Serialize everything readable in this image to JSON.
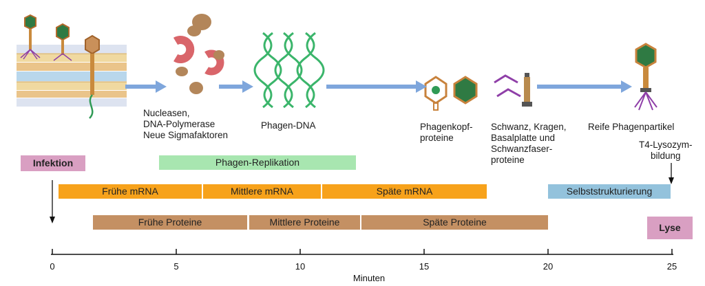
{
  "stage_labels": {
    "enzymes": "Nucleasen,\nDNA-Polymerase\nNeue Sigmafaktoren",
    "phage_dna": "Phagen-DNA",
    "head_proteins": "Phagenkopf-\nproteine",
    "tail_proteins": "Schwanz, Kragen,\nBasalplatte und\nSchwanzfaser-\nproteine",
    "mature": "Reife Phagenpartikel",
    "lysozyme": "T4-Lysozym-\nbildung"
  },
  "events": {
    "infection": "Infektion",
    "lysis": "Lyse"
  },
  "bars": {
    "replication": "Phagen-Replikation",
    "early_mrna": "Frühe mRNA",
    "middle_mrna": "Mittlere mRNA",
    "late_mrna": "Späte mRNA",
    "self_assembly": "Selbststrukturierung",
    "early_proteins": "Frühe Proteine",
    "middle_proteins": "Mittlere Proteine",
    "late_proteins": "Späte Proteine"
  },
  "axis": {
    "label": "Minuten",
    "ticks": [
      "0",
      "5",
      "10",
      "15",
      "20",
      "25"
    ]
  },
  "colors": {
    "infection": "#d99fc2",
    "lysis": "#d99fc2",
    "replication": "#a8e6b0",
    "orange": "#f7a21b",
    "brown": "#c49063",
    "self_assembly": "#93c2dc",
    "flow_arrow": "#7ea6dc",
    "dna": "#3bb56b",
    "nuclease": "#d9656a",
    "enzyme": "#b3865a"
  }
}
